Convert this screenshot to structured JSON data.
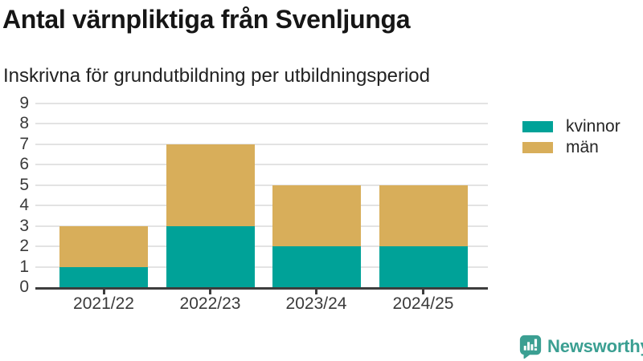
{
  "chart_data": {
    "type": "bar",
    "stacked": true,
    "title": "Antal värnpliktiga från Svenljunga",
    "subtitle": "Inskrivna för grundutbildning per utbildningsperiod",
    "categories": [
      "2021/22",
      "2022/23",
      "2023/24",
      "2024/25"
    ],
    "series": [
      {
        "name": "kvinnor",
        "color": "#00a298",
        "values": [
          1,
          3,
          2,
          2
        ]
      },
      {
        "name": "män",
        "color": "#d8ae5a",
        "values": [
          2,
          4,
          3,
          3
        ]
      }
    ],
    "totals": [
      3,
      7,
      5,
      5
    ],
    "xlabel": "",
    "ylabel": "",
    "ylim": [
      0,
      9
    ],
    "yticks": [
      0,
      1,
      2,
      3,
      4,
      5,
      6,
      7,
      8,
      9
    ],
    "grid": true,
    "legend_position": "right"
  },
  "colors": {
    "kvinnor": "#00a298",
    "man": "#d8ae5a",
    "gridline": "#e3e3e3",
    "axis": "#3d3d3d",
    "brand": "#3b9f92"
  },
  "footer": {
    "brand": "Newsworthy",
    "logo_icon": "newsworthy-bar-chart-bubble-icon"
  }
}
